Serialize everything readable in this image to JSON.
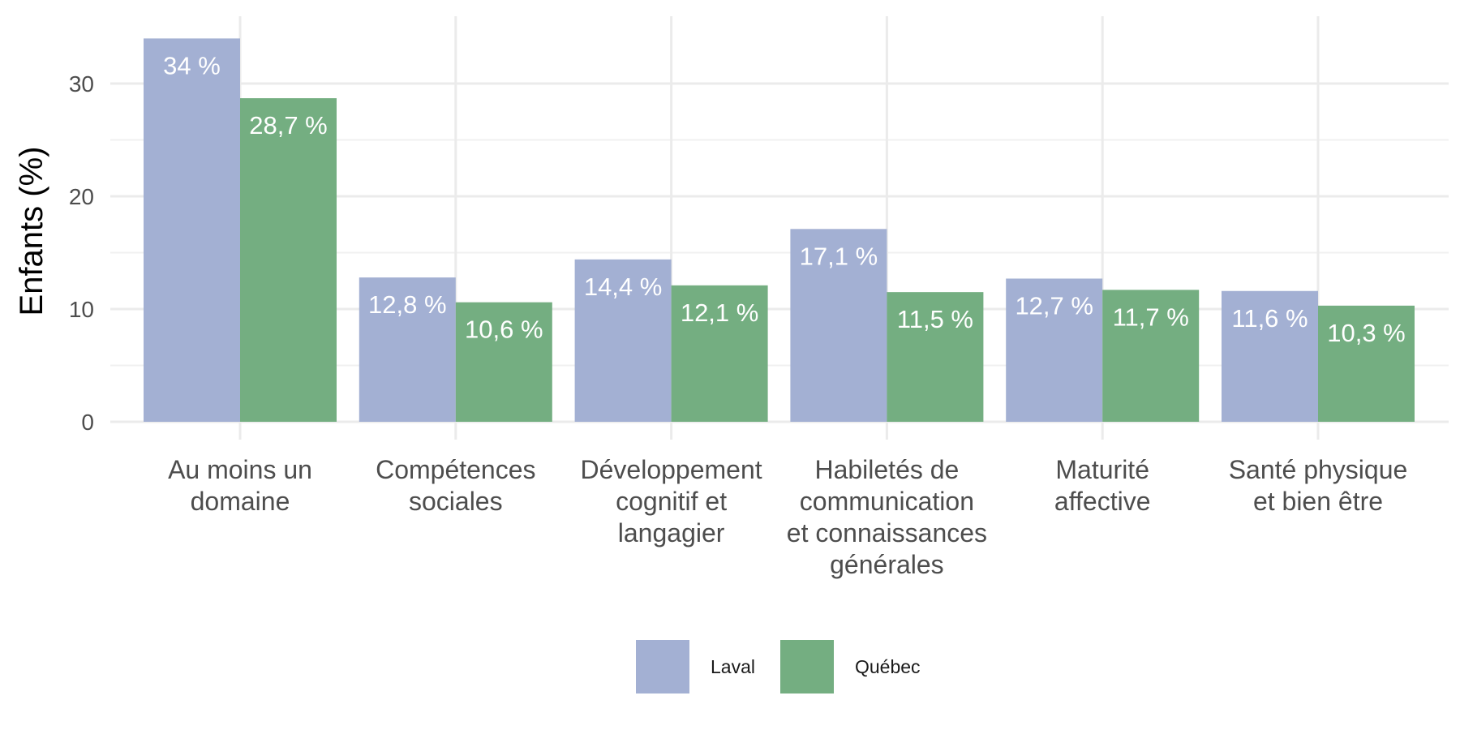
{
  "chart_data": {
    "type": "bar",
    "title": "",
    "xlabel": "",
    "ylabel": "Enfants (%)",
    "ylim": [
      0,
      34.5
    ],
    "yticks": [
      0,
      10,
      20,
      30
    ],
    "grid": true,
    "legend_position": "bottom",
    "categories": [
      [
        "Au moins un",
        "domaine"
      ],
      [
        "Compétences",
        "sociales"
      ],
      [
        "Développement",
        "cognitif et",
        "langagier"
      ],
      [
        "Habiletés de",
        "communication",
        "et connaissances",
        "générales"
      ],
      [
        "Maturité",
        "affective"
      ],
      [
        "Santé physique",
        "et bien être"
      ]
    ],
    "series": [
      {
        "name": "Laval",
        "color": "#a3b0d3",
        "values": [
          34,
          12.8,
          14.4,
          17.1,
          12.7,
          11.6
        ],
        "labels": [
          "34 %",
          "12,8 %",
          "14,4 %",
          "17,1 %",
          "12,7 %",
          "11,6 %"
        ]
      },
      {
        "name": "Québec",
        "color": "#74ae81",
        "values": [
          28.7,
          10.6,
          12.1,
          11.5,
          11.7,
          10.3
        ],
        "labels": [
          "28,7 %",
          "10,6 %",
          "12,1 %",
          "11,5 %",
          "11,7 %",
          "10,3 %"
        ]
      }
    ]
  }
}
